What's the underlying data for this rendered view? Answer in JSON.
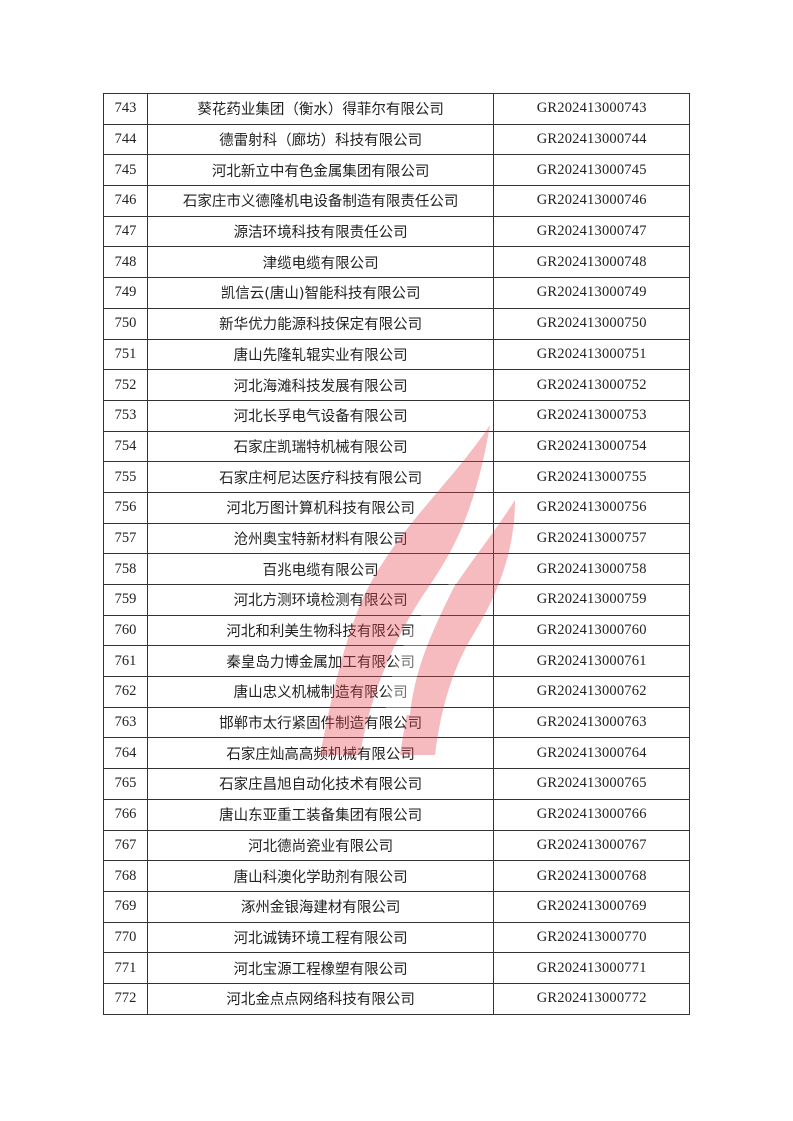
{
  "watermark": {
    "icon": "flame-logo",
    "color": "#e8404a"
  },
  "table": {
    "rows": [
      {
        "no": "743",
        "name": "葵花药业集团（衡水）得菲尔有限公司",
        "code": "GR202413000743"
      },
      {
        "no": "744",
        "name": "德雷射科（廊坊）科技有限公司",
        "code": "GR202413000744"
      },
      {
        "no": "745",
        "name": "河北新立中有色金属集团有限公司",
        "code": "GR202413000745"
      },
      {
        "no": "746",
        "name": "石家庄市义德隆机电设备制造有限责任公司",
        "code": "GR202413000746"
      },
      {
        "no": "747",
        "name": "源洁环境科技有限责任公司",
        "code": "GR202413000747"
      },
      {
        "no": "748",
        "name": "津缆电缆有限公司",
        "code": "GR202413000748"
      },
      {
        "no": "749",
        "name": "凯信云(唐山)智能科技有限公司",
        "code": "GR202413000749"
      },
      {
        "no": "750",
        "name": "新华优力能源科技保定有限公司",
        "code": "GR202413000750"
      },
      {
        "no": "751",
        "name": "唐山先隆轧辊实业有限公司",
        "code": "GR202413000751"
      },
      {
        "no": "752",
        "name": "河北海滩科技发展有限公司",
        "code": "GR202413000752"
      },
      {
        "no": "753",
        "name": "河北长孚电气设备有限公司",
        "code": "GR202413000753"
      },
      {
        "no": "754",
        "name": "石家庄凯瑞特机械有限公司",
        "code": "GR202413000754"
      },
      {
        "no": "755",
        "name": "石家庄柯尼达医疗科技有限公司",
        "code": "GR202413000755"
      },
      {
        "no": "756",
        "name": "河北万图计算机科技有限公司",
        "code": "GR202413000756"
      },
      {
        "no": "757",
        "name": "沧州奥宝特新材料有限公司",
        "code": "GR202413000757"
      },
      {
        "no": "758",
        "name": "百兆电缆有限公司",
        "code": "GR202413000758"
      },
      {
        "no": "759",
        "name": "河北方测环境检测有限公司",
        "code": "GR202413000759"
      },
      {
        "no": "760",
        "name": "河北和利美生物科技有限公司",
        "code": "GR202413000760"
      },
      {
        "no": "761",
        "name": "秦皇岛力博金属加工有限公司",
        "code": "GR202413000761"
      },
      {
        "no": "762",
        "name": "唐山忠义机械制造有限公司",
        "code": "GR202413000762"
      },
      {
        "no": "763",
        "name": "邯郸市太行紧固件制造有限公司",
        "code": "GR202413000763"
      },
      {
        "no": "764",
        "name": "石家庄灿高高频机械有限公司",
        "code": "GR202413000764"
      },
      {
        "no": "765",
        "name": "石家庄昌旭自动化技术有限公司",
        "code": "GR202413000765"
      },
      {
        "no": "766",
        "name": "唐山东亚重工装备集团有限公司",
        "code": "GR202413000766"
      },
      {
        "no": "767",
        "name": "河北德尚瓷业有限公司",
        "code": "GR202413000767"
      },
      {
        "no": "768",
        "name": "唐山科澳化学助剂有限公司",
        "code": "GR202413000768"
      },
      {
        "no": "769",
        "name": "涿州金银海建材有限公司",
        "code": "GR202413000769"
      },
      {
        "no": "770",
        "name": "河北诚铸环境工程有限公司",
        "code": "GR202413000770"
      },
      {
        "no": "771",
        "name": "河北宝源工程橡塑有限公司",
        "code": "GR202413000771"
      },
      {
        "no": "772",
        "name": "河北金点点网络科技有限公司",
        "code": "GR202413000772"
      }
    ]
  }
}
